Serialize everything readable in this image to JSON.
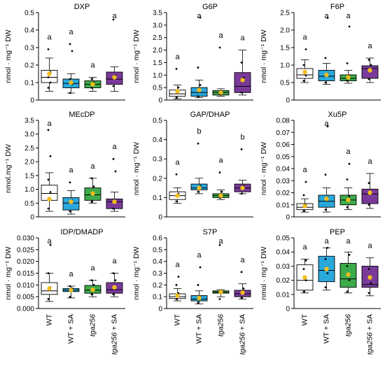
{
  "colors": {
    "WT": "#ffffff",
    "WT_SA": "#29a8dc",
    "tga": "#3cab4a",
    "tga_SA": "#7a3a9a",
    "mean": "#f2bd1b"
  },
  "chart_data": [
    {
      "type": "box",
      "title": "DXP",
      "ylabel": "nmol · mg⁻¹ DW",
      "ylim": [
        0,
        0.5
      ],
      "ticks": [
        0,
        0.1,
        0.2,
        0.3,
        0.4,
        0.5
      ],
      "tick_labels": [
        "0",
        "0.1",
        "0.2",
        "0.3",
        "0.4",
        "0.5"
      ],
      "show_x": false,
      "boxes": [
        {
          "q1": 0.1,
          "median": 0.13,
          "q3": 0.17,
          "lo": 0.05,
          "hi": 0.24,
          "mean": 0.15,
          "points": [
            0.07,
            0.1,
            0.13,
            0.16,
            0.29
          ],
          "letter": "a"
        },
        {
          "q1": 0.07,
          "median": 0.095,
          "q3": 0.12,
          "lo": 0.04,
          "hi": 0.15,
          "mean": 0.1,
          "points": [
            0.04,
            0.09,
            0.12,
            0.28,
            0.32
          ],
          "letter": "a"
        },
        {
          "q1": 0.07,
          "median": 0.09,
          "q3": 0.11,
          "lo": 0.05,
          "hi": 0.13,
          "mean": 0.09,
          "points": [
            0.07,
            0.1,
            0.12
          ],
          "letter": "a"
        },
        {
          "q1": 0.09,
          "median": 0.12,
          "q3": 0.16,
          "lo": 0.05,
          "hi": 0.19,
          "mean": 0.13,
          "points": [
            0.08,
            0.14,
            0.46
          ],
          "letter": "a"
        }
      ]
    },
    {
      "type": "box",
      "title": "G6P",
      "ylabel": "nmol · mg⁻¹ DW",
      "ylim": [
        0,
        3.5
      ],
      "ticks": [
        0,
        0.5,
        1,
        1.5,
        2,
        2.5,
        3,
        3.5
      ],
      "tick_labels": [
        "0",
        "0.5",
        "1.0",
        "1.5",
        "2.0",
        "2.5",
        "3.0",
        "3.5"
      ],
      "show_x": false,
      "boxes": [
        {
          "q1": 0.15,
          "median": 0.25,
          "q3": 0.4,
          "lo": 0.05,
          "hi": 0.6,
          "mean": 0.35,
          "points": [
            0.1,
            0.5,
            1.25
          ],
          "letter": "a"
        },
        {
          "q1": 0.15,
          "median": 0.3,
          "q3": 0.5,
          "lo": 0.1,
          "hi": 0.8,
          "mean": 0.4,
          "points": [
            0.15,
            0.6,
            1.3,
            3.3
          ],
          "letter": "a"
        },
        {
          "q1": 0.2,
          "median": 0.3,
          "q3": 0.38,
          "lo": 0.15,
          "hi": 0.45,
          "mean": 0.3,
          "points": [
            0.25,
            0.35,
            2.1
          ],
          "letter": "a"
        },
        {
          "q1": 0.3,
          "median": 0.55,
          "q3": 1.1,
          "lo": 0.2,
          "hi": 2.0,
          "mean": 0.8,
          "points": [
            0.3,
            0.9,
            1.5
          ],
          "letter": "a"
        }
      ]
    },
    {
      "type": "box",
      "title": "F6P",
      "ylabel": "nmol · mg⁻¹ DW",
      "ylim": [
        0,
        2.5
      ],
      "ticks": [
        0,
        0.5,
        1,
        1.5,
        2,
        2.5
      ],
      "tick_labels": [
        "0",
        "0.5",
        "1.0",
        "1.5",
        "2.0",
        "2.5"
      ],
      "show_x": false,
      "boxes": [
        {
          "q1": 0.62,
          "median": 0.72,
          "q3": 0.9,
          "lo": 0.5,
          "hi": 1.15,
          "mean": 0.8,
          "points": [
            0.55,
            0.7,
            1.0,
            1.45
          ],
          "letter": "a"
        },
        {
          "q1": 0.55,
          "median": 0.68,
          "q3": 0.85,
          "lo": 0.45,
          "hi": 1.05,
          "mean": 0.72,
          "points": [
            0.5,
            0.75,
            1.2,
            2.35
          ],
          "letter": "a"
        },
        {
          "q1": 0.55,
          "median": 0.62,
          "q3": 0.72,
          "lo": 0.48,
          "hi": 0.85,
          "mean": 0.65,
          "points": [
            0.55,
            0.7,
            1.05,
            2.1
          ],
          "letter": "a"
        },
        {
          "q1": 0.62,
          "median": 0.9,
          "q3": 0.98,
          "lo": 0.5,
          "hi": 1.2,
          "mean": 0.85,
          "points": [
            0.6,
            1.0,
            1.15
          ],
          "letter": "a"
        }
      ]
    },
    {
      "type": "box",
      "title": "MEcDP",
      "ylabel": "nmol.mg⁻¹ DW",
      "ylim": [
        0,
        3.5
      ],
      "ticks": [
        0,
        0.5,
        1,
        1.5,
        2,
        2.5,
        3,
        3.5
      ],
      "tick_labels": [
        "0",
        "0.5",
        "1.0",
        "1.5",
        "2.0",
        "2.5",
        "3.0",
        "3.5"
      ],
      "show_x": false,
      "boxes": [
        {
          "q1": 0.6,
          "median": 0.85,
          "q3": 1.15,
          "lo": 0.2,
          "hi": 1.6,
          "mean": 0.65,
          "points": [
            0.3,
            0.9,
            1.35,
            2.2,
            3.15
          ],
          "letter": "a"
        },
        {
          "q1": 0.25,
          "median": 0.5,
          "q3": 0.7,
          "lo": 0.1,
          "hi": 0.95,
          "mean": 0.55,
          "points": [
            0.2,
            0.6,
            1.25
          ],
          "letter": "a"
        },
        {
          "q1": 0.6,
          "median": 0.8,
          "q3": 1.05,
          "lo": 0.5,
          "hi": 1.4,
          "mean": 0.85,
          "points": [
            0.55,
            1.1,
            1.4
          ],
          "letter": "a"
        },
        {
          "q1": 0.3,
          "median": 0.55,
          "q3": 0.65,
          "lo": 0.2,
          "hi": 0.9,
          "mean": 0.55,
          "points": [
            0.3,
            1.65,
            2.1
          ],
          "letter": "a"
        }
      ]
    },
    {
      "type": "box",
      "title": "GAP/DHAP",
      "ylabel": "nmol · mg⁻¹ DW",
      "ylim": [
        0,
        0.5
      ],
      "ticks": [
        0,
        0.1,
        0.2,
        0.3,
        0.4,
        0.5
      ],
      "tick_labels": [
        "0",
        "0.1",
        "0.2",
        "0.3",
        "0.4",
        "0.5"
      ],
      "show_x": false,
      "boxes": [
        {
          "q1": 0.09,
          "median": 0.11,
          "q3": 0.13,
          "lo": 0.07,
          "hi": 0.15,
          "mean": 0.11,
          "points": [
            0.08,
            0.12,
            0.22
          ],
          "letter": "a"
        },
        {
          "q1": 0.14,
          "median": 0.15,
          "q3": 0.17,
          "lo": 0.12,
          "hi": 0.2,
          "mean": 0.15,
          "points": [
            0.13,
            0.16,
            0.38
          ],
          "letter": "b"
        },
        {
          "q1": 0.1,
          "median": 0.11,
          "q3": 0.12,
          "lo": 0.09,
          "hi": 0.14,
          "mean": 0.11,
          "points": [
            0.1,
            0.13,
            0.23
          ],
          "letter": "a"
        },
        {
          "q1": 0.13,
          "median": 0.15,
          "q3": 0.17,
          "lo": 0.12,
          "hi": 0.19,
          "mean": 0.15,
          "points": [
            0.12,
            0.16,
            0.35
          ],
          "letter": "b"
        }
      ]
    },
    {
      "type": "box",
      "title": "Xu5P",
      "ylabel": "nmol · mg⁻¹ DW",
      "ylim": [
        0,
        0.08
      ],
      "ticks": [
        0,
        0.01,
        0.02,
        0.03,
        0.04,
        0.05,
        0.06,
        0.07,
        0.08
      ],
      "tick_labels": [
        "0",
        "0.01",
        "0.02",
        "0.03",
        "0.04",
        "0.05",
        "0.06",
        "0.07",
        "0.08"
      ],
      "show_x": false,
      "boxes": [
        {
          "q1": 0.006,
          "median": 0.008,
          "q3": 0.011,
          "lo": 0.004,
          "hi": 0.015,
          "mean": 0.009,
          "points": [
            0.005,
            0.01,
            0.018,
            0.029
          ],
          "letter": "a"
        },
        {
          "q1": 0.008,
          "median": 0.013,
          "q3": 0.018,
          "lo": 0.004,
          "hi": 0.024,
          "mean": 0.015,
          "points": [
            0.006,
            0.016,
            0.035,
            0.075
          ],
          "letter": "a"
        },
        {
          "q1": 0.01,
          "median": 0.014,
          "q3": 0.018,
          "lo": 0.006,
          "hi": 0.024,
          "mean": 0.014,
          "points": [
            0.008,
            0.017,
            0.031,
            0.044
          ],
          "letter": "a"
        },
        {
          "q1": 0.011,
          "median": 0.019,
          "q3": 0.023,
          "lo": 0.007,
          "hi": 0.036,
          "mean": 0.02,
          "points": [
            0.01,
            0.02,
            0.028
          ],
          "letter": "a"
        }
      ]
    },
    {
      "type": "box",
      "title": "IDP/DMADP",
      "ylabel": "nmol · mg⁻¹ DW",
      "ylim": [
        0,
        0.03
      ],
      "ticks": [
        0,
        0.005,
        0.01,
        0.015,
        0.02,
        0.025,
        0.03
      ],
      "tick_labels": [
        "0.000",
        "0.005",
        "0.010",
        "0.015",
        "0.020",
        "0.025",
        "0.030"
      ],
      "show_x": true,
      "boxes": [
        {
          "q1": 0.006,
          "median": 0.0075,
          "q3": 0.011,
          "lo": 0.003,
          "hi": 0.015,
          "mean": 0.0085,
          "points": [
            0.004,
            0.009,
            0.015,
            0.027
          ],
          "letter": "a"
        },
        {
          "q1": 0.0072,
          "median": 0.0078,
          "q3": 0.0085,
          "lo": 0.0045,
          "hi": 0.0095,
          "mean": 0.0078,
          "points": [
            0.005,
            0.0085,
            0.0095
          ],
          "letter": "a"
        },
        {
          "q1": 0.0065,
          "median": 0.0078,
          "q3": 0.0098,
          "lo": 0.005,
          "hi": 0.012,
          "mean": 0.008,
          "points": [
            0.006,
            0.01,
            0.012
          ],
          "letter": "a"
        },
        {
          "q1": 0.0065,
          "median": 0.008,
          "q3": 0.011,
          "lo": 0.005,
          "hi": 0.015,
          "mean": 0.009,
          "points": [
            0.006,
            0.012,
            0.015
          ],
          "letter": "a"
        }
      ]
    },
    {
      "type": "box",
      "title": "S7P",
      "ylabel": "nmol · mg⁻¹ DW",
      "ylim": [
        0,
        0.6
      ],
      "ticks": [
        0,
        0.1,
        0.2,
        0.3,
        0.4,
        0.5,
        0.6
      ],
      "tick_labels": [
        "0",
        "0.1",
        "0.2",
        "0.3",
        "0.4",
        "0.5",
        "0.6"
      ],
      "show_x": true,
      "boxes": [
        {
          "q1": 0.085,
          "median": 0.1,
          "q3": 0.125,
          "lo": 0.065,
          "hi": 0.17,
          "mean": 0.11,
          "points": [
            0.08,
            0.13,
            0.2,
            0.27
          ],
          "letter": "a"
        },
        {
          "q1": 0.065,
          "median": 0.08,
          "q3": 0.11,
          "lo": 0.04,
          "hi": 0.15,
          "mean": 0.09,
          "points": [
            0.05,
            0.1,
            0.2,
            0.35
          ],
          "letter": "a"
        },
        {
          "q1": 0.13,
          "median": 0.14,
          "q3": 0.15,
          "lo": 0.1,
          "hi": 0.16,
          "mean": 0.14,
          "points": [
            0.08,
            0.14,
            0.54
          ],
          "letter": "a"
        },
        {
          "q1": 0.1,
          "median": 0.125,
          "q3": 0.155,
          "lo": 0.08,
          "hi": 0.21,
          "mean": 0.135,
          "points": [
            0.09,
            0.17,
            0.31
          ],
          "letter": "a"
        }
      ]
    },
    {
      "type": "box",
      "title": "PEP",
      "ylabel": "nmol · mg⁻¹ DW",
      "ylim": [
        0,
        0.05
      ],
      "ticks": [
        0,
        0.01,
        0.02,
        0.03,
        0.04,
        0.05
      ],
      "tick_labels": [
        "0",
        "0.01",
        "0.02",
        "0.03",
        "0.04",
        "0.05"
      ],
      "show_x": true,
      "boxes": [
        {
          "q1": 0.013,
          "median": 0.02,
          "q3": 0.031,
          "lo": 0.011,
          "hi": 0.035,
          "mean": 0.022,
          "points": [
            0.012,
            0.02,
            0.028,
            0.034
          ],
          "letter": "a"
        },
        {
          "q1": 0.019,
          "median": 0.027,
          "q3": 0.037,
          "lo": 0.013,
          "hi": 0.043,
          "mean": 0.028,
          "points": [
            0.015,
            0.025,
            0.035,
            0.043
          ],
          "letter": "a"
        },
        {
          "q1": 0.015,
          "median": 0.021,
          "q3": 0.032,
          "lo": 0.011,
          "hi": 0.04,
          "mean": 0.024,
          "points": [
            0.012,
            0.02,
            0.03,
            0.038
          ],
          "letter": "a"
        },
        {
          "q1": 0.015,
          "median": 0.017,
          "q3": 0.03,
          "lo": 0.009,
          "hi": 0.036,
          "mean": 0.022,
          "points": [
            0.011,
            0.018,
            0.028
          ],
          "letter": "a"
        }
      ]
    }
  ],
  "x_categories": [
    {
      "label": "WT",
      "italic": ""
    },
    {
      "label": "WT + SA",
      "italic": ""
    },
    {
      "label": "",
      "italic": "tga256"
    },
    {
      "label": " + SA",
      "italic": "tga256"
    }
  ]
}
